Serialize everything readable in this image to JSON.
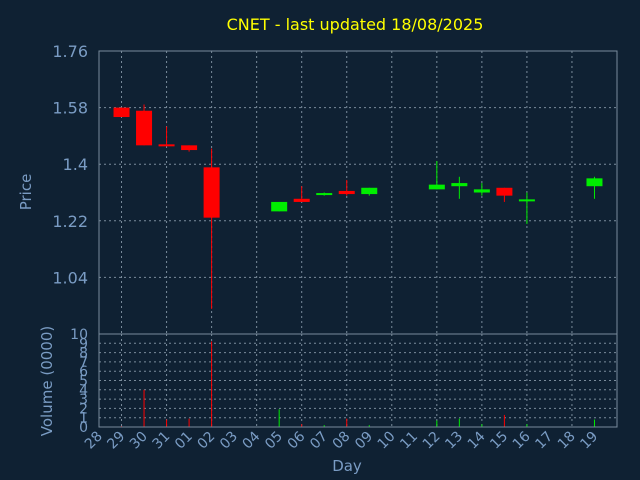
{
  "chart_data": {
    "type": "candlestick",
    "title": "CNET - last updated 18/08/2025",
    "xlabel": "Day",
    "price_panel": {
      "ylabel": "Price",
      "ylim": [
        0.86,
        1.76
      ],
      "yticks": [
        "1.76",
        "1.58",
        "1.4",
        "1.22",
        "1.04"
      ],
      "ytick_values": [
        1.76,
        1.58,
        1.4,
        1.22,
        1.04
      ]
    },
    "volume_panel": {
      "ylabel": "Volume (0000)",
      "ylim": [
        0,
        10
      ],
      "yticks": [
        "10",
        "9",
        "8",
        "7",
        "6",
        "5",
        "4",
        "3",
        "2",
        "1",
        "0"
      ],
      "ytick_values": [
        10,
        9,
        8,
        7,
        6,
        5,
        4,
        3,
        2,
        1,
        0
      ]
    },
    "x_labels": [
      "28",
      "29",
      "30",
      "31",
      "01",
      "02",
      "03",
      "04",
      "05",
      "06",
      "07",
      "08",
      "09",
      "10",
      "11",
      "12",
      "13",
      "14",
      "15",
      "16",
      "17",
      "18",
      "19"
    ],
    "grid": true,
    "up_color": "#00ee00",
    "down_color": "#ff0000",
    "candles": [
      {
        "day": "28",
        "open": 1.58,
        "high": 1.58,
        "low": 1.55,
        "close": 1.55,
        "volume": 0.1
      },
      {
        "day": "29",
        "open": 1.57,
        "high": 1.59,
        "low": 1.46,
        "close": 1.46,
        "volume": 4.0
      },
      {
        "day": "30",
        "open": 1.46,
        "high": 1.52,
        "low": 1.46,
        "close": 1.455,
        "volume": 0.8
      },
      {
        "day": "31",
        "open": 1.46,
        "high": 1.46,
        "low": 1.44,
        "close": 1.445,
        "volume": 0.9
      },
      {
        "day": "01",
        "open": 1.39,
        "high": 1.45,
        "low": 0.94,
        "close": 1.23,
        "volume": 9.2
      },
      {
        "day": "04",
        "open": 1.25,
        "high": 1.28,
        "low": 1.25,
        "close": 1.28,
        "volume": 1.9
      },
      {
        "day": "05",
        "open": 1.29,
        "high": 1.33,
        "low": 1.28,
        "close": 1.28,
        "volume": 0.3
      },
      {
        "day": "06",
        "open": 1.3,
        "high": 1.31,
        "low": 1.3,
        "close": 1.305,
        "volume": 0.2
      },
      {
        "day": "07",
        "open": 1.315,
        "high": 1.35,
        "low": 1.3,
        "close": 1.305,
        "volume": 0.9
      },
      {
        "day": "08",
        "open": 1.305,
        "high": 1.325,
        "low": 1.3,
        "close": 1.325,
        "volume": 0.2
      },
      {
        "day": "11",
        "open": 1.32,
        "high": 1.41,
        "low": 1.32,
        "close": 1.335,
        "volume": 0.7
      },
      {
        "day": "12",
        "open": 1.33,
        "high": 1.36,
        "low": 1.29,
        "close": 1.34,
        "volume": 0.9
      },
      {
        "day": "13",
        "open": 1.31,
        "high": 1.34,
        "low": 1.3,
        "close": 1.32,
        "volume": 0.3
      },
      {
        "day": "14",
        "open": 1.325,
        "high": 1.325,
        "low": 1.28,
        "close": 1.3,
        "volume": 1.3
      },
      {
        "day": "15",
        "open": 1.28,
        "high": 1.31,
        "low": 1.21,
        "close": 1.285,
        "volume": 0.3
      },
      {
        "day": "18",
        "open": 1.33,
        "high": 1.36,
        "low": 1.29,
        "close": 1.355,
        "volume": 0.8
      }
    ]
  }
}
